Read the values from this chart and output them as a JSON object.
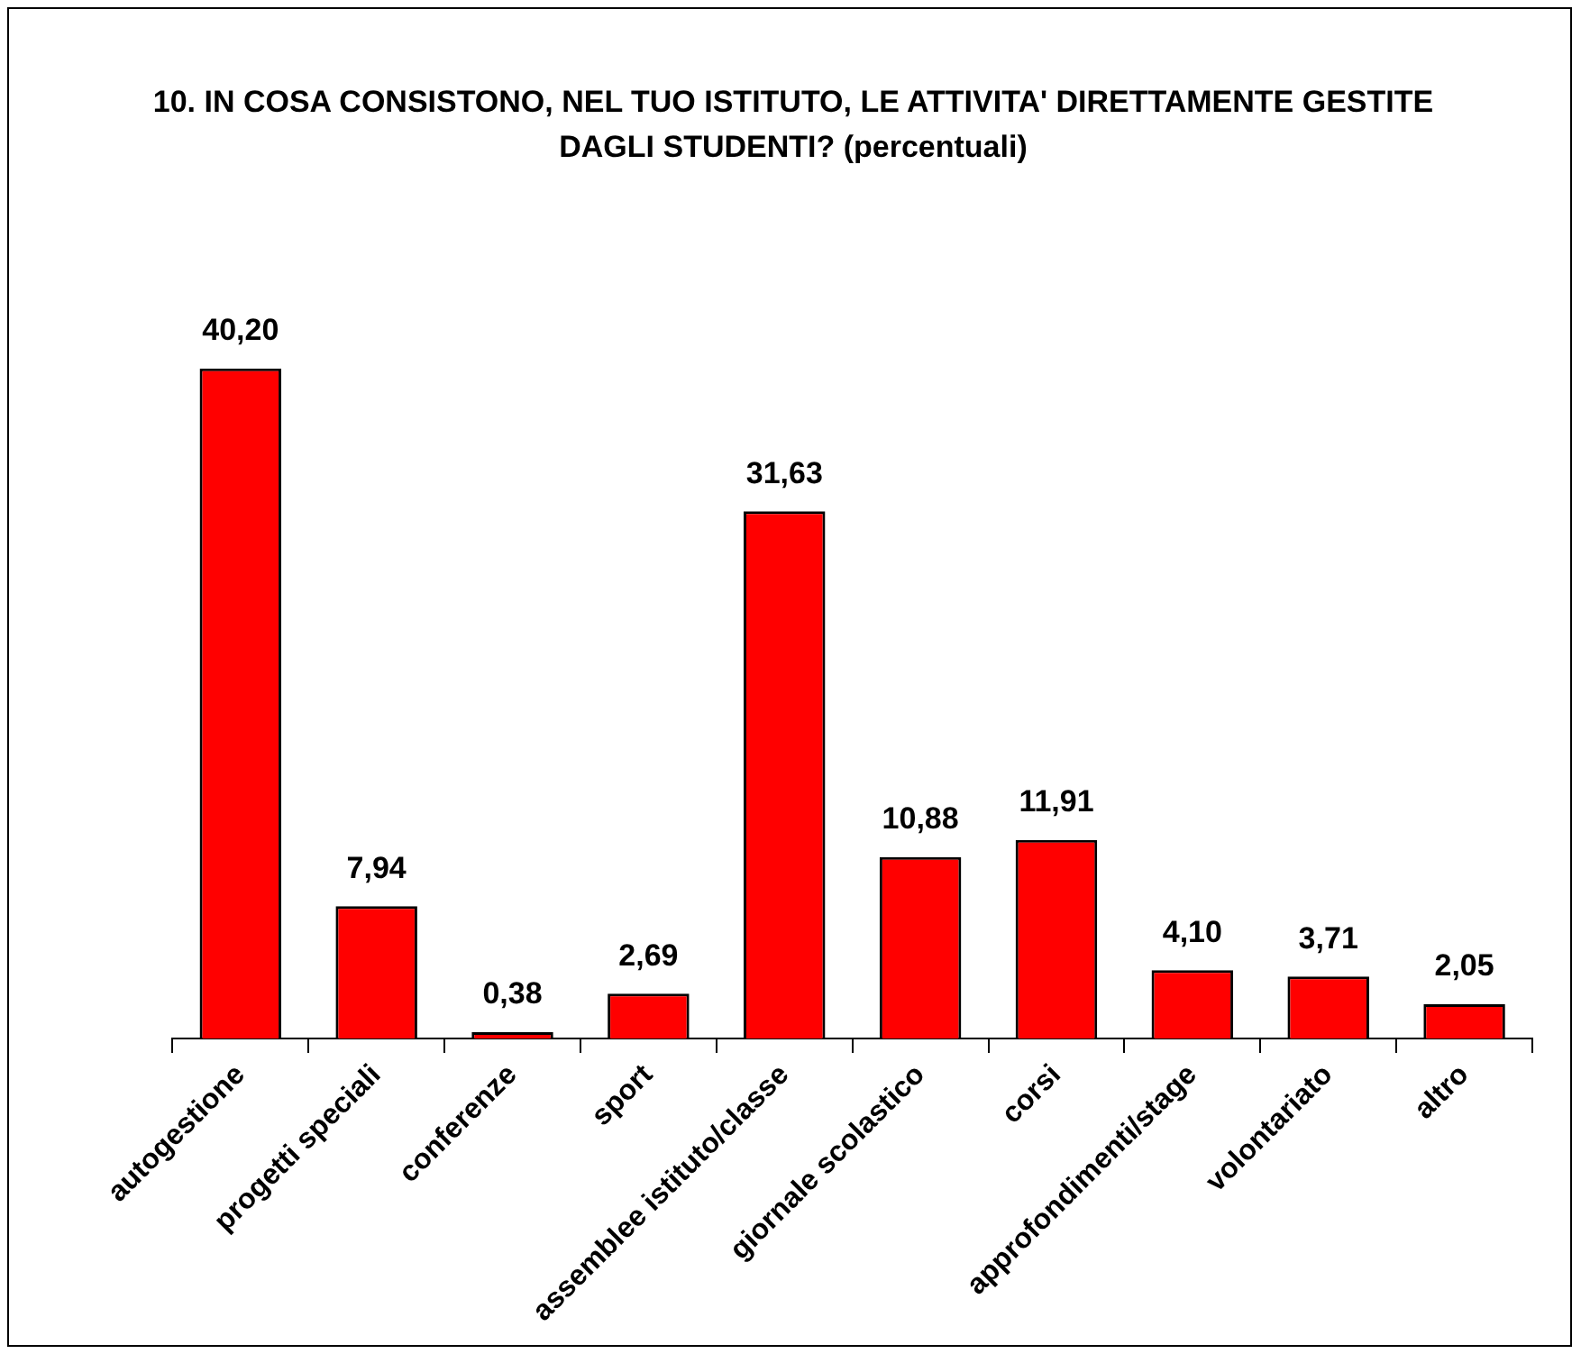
{
  "chart_data": {
    "type": "bar",
    "title": "10. IN COSA CONSISTONO, NEL TUO ISTITUTO, LE ATTIVITA' DIRETTAMENTE GESTITE DAGLI STUDENTI? (percentuali)",
    "categories": [
      "autogestione",
      "progetti speciali",
      "conferenze",
      "sport",
      "assemblee istituto/classe",
      "giornale scolastico",
      "corsi",
      "approfondimenti/stage",
      "volontariato",
      "altro"
    ],
    "values": [
      40.2,
      7.94,
      0.38,
      2.69,
      31.63,
      10.88,
      11.91,
      4.1,
      3.71,
      2.05
    ],
    "value_labels": [
      "40,20",
      "7,94",
      "0,38",
      "2,69",
      "31,63",
      "10,88",
      "11,91",
      "4,10",
      "3,71",
      "2,05"
    ],
    "color": "#ff0000",
    "grid": false,
    "legend": false,
    "tick_labels": "x"
  }
}
